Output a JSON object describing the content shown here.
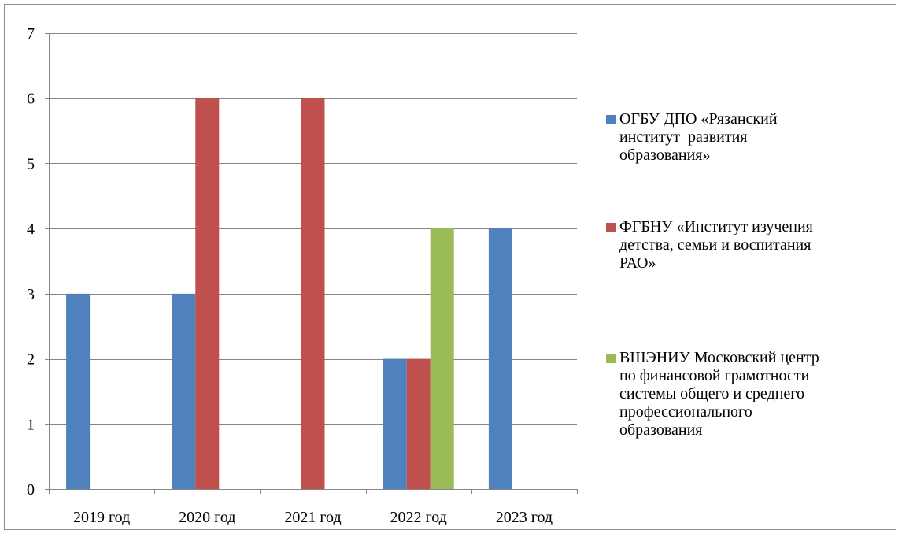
{
  "chart_data": {
    "type": "bar",
    "categories": [
      "2019 год",
      "2020 год",
      "2021 год",
      "2022 год",
      "2023 год"
    ],
    "series": [
      {
        "name": "ОГБУ ДПО «Рязанский\nинститут  развития\nобразования»",
        "color": "#4f81bd",
        "values": [
          3,
          3,
          0,
          2,
          4
        ]
      },
      {
        "name": "ФГБНУ «Институт изучения\nдетства, семьи и воспитания\nРАО»",
        "color": "#c0504d",
        "values": [
          0,
          6,
          6,
          2,
          0
        ]
      },
      {
        "name": "ВШЭНИУ Московский центр\nпо финансовой грамотности\nсистемы общего и среднего\nпрофессионального\nобразования",
        "color": "#9bbb59",
        "values": [
          0,
          0,
          0,
          4,
          0
        ]
      }
    ],
    "yticks": [
      "0",
      "1",
      "2",
      "3",
      "4",
      "5",
      "6",
      "7"
    ],
    "ylim": [
      0,
      7
    ],
    "grid": true,
    "legend_position": "right"
  }
}
